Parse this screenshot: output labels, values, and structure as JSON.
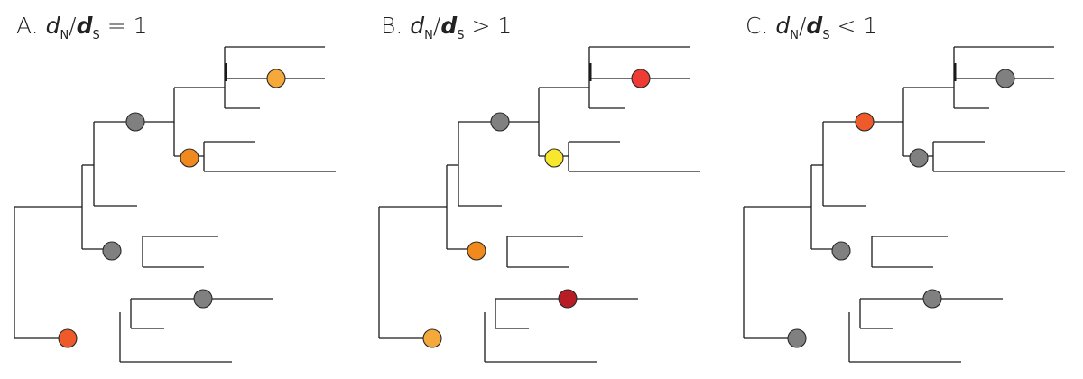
{
  "panels": [
    {
      "letter": "A.",
      "numerator": "d",
      "numerator_sub": "N",
      "denominator": "d",
      "denominator_sub": "S",
      "relation": "= 1",
      "node_colors": {
        "root_upper": "#ffffff00",
        "upper_inner": "#808080",
        "clade_top": "#ffffff00",
        "top_leaf_node": "#F6A93B",
        "mid_node": "#F08A1E",
        "lower_node": "#808080",
        "bottom_root": "#EE5A2A",
        "bottom_upper": "#808080"
      }
    },
    {
      "letter": "B.",
      "numerator": "d",
      "numerator_sub": "N",
      "denominator": "d",
      "denominator_sub": "S",
      "relation": "> 1",
      "node_colors": {
        "upper_inner": "#808080",
        "top_leaf_node": "#EE3B33",
        "mid_node": "#F7E82E",
        "lower_node": "#F08A1E",
        "bottom_root": "#F6A93B",
        "bottom_upper": "#B81D26"
      }
    },
    {
      "letter": "C.",
      "numerator": "d",
      "numerator_sub": "N",
      "denominator": "d",
      "denominator_sub": "S",
      "relation": "< 1",
      "node_colors": {
        "upper_inner": "#EE5A2A",
        "top_leaf_node": "#808080",
        "mid_node": "#808080",
        "lower_node": "#808080",
        "bottom_root": "#808080",
        "bottom_upper": "#808080"
      }
    }
  ]
}
